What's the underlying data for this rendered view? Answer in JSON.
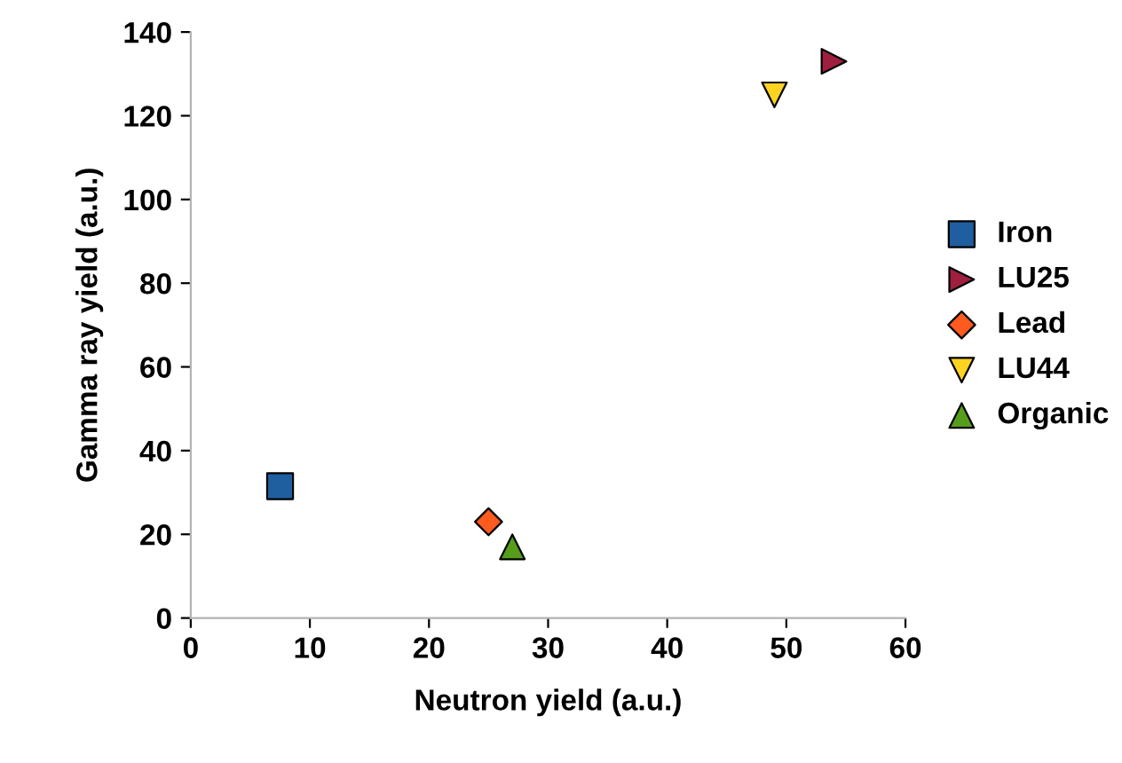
{
  "chart_data": {
    "type": "scatter",
    "xlabel": "Neutron yield (a.u.)",
    "ylabel": "Gamma ray yield (a.u.)",
    "xlim": [
      0,
      60
    ],
    "xticks": [
      0,
      10,
      20,
      30,
      40,
      50,
      60
    ],
    "ylim": [
      0,
      140
    ],
    "yticks": [
      0,
      20,
      40,
      60,
      80,
      100,
      120,
      140
    ],
    "grid": false,
    "legend": "right",
    "series": [
      {
        "name": "Iron",
        "color": "#1f5fa0",
        "marker": "square",
        "x": [
          7.5
        ],
        "values": [
          31.5
        ]
      },
      {
        "name": "LU25",
        "color": "#9e1f3f",
        "marker": "triangle_right",
        "x": [
          54
        ],
        "values": [
          133
        ]
      },
      {
        "name": "Lead",
        "color": "#ff5a1f",
        "marker": "diamond",
        "x": [
          25
        ],
        "values": [
          23
        ]
      },
      {
        "name": "LU44",
        "color": "#ffd320",
        "marker": "triangle_down",
        "x": [
          49
        ],
        "values": [
          125
        ]
      },
      {
        "name": "Organic",
        "color": "#579d1c",
        "marker": "triangle",
        "x": [
          27
        ],
        "values": [
          17
        ]
      }
    ]
  }
}
